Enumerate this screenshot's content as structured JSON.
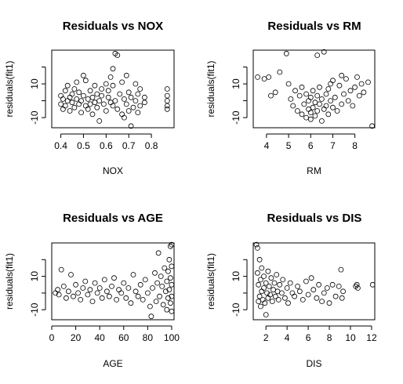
{
  "chart_data": [
    {
      "type": "scatter",
      "title": "Residuals vs NOX",
      "xlabel": "NOX",
      "ylabel": "residuals(fit1)",
      "xlim": [
        0.36,
        0.9
      ],
      "ylim": [
        -16,
        30
      ],
      "xticks": [
        0.4,
        0.5,
        0.6,
        0.7,
        0.8
      ],
      "xtick_labels": [
        "0.4",
        "0.5",
        "0.6",
        "0.7",
        "0.8"
      ],
      "yticks": [
        -10,
        0,
        10,
        20
      ],
      "ytick_labels": [
        "-10",
        "",
        "10",
        ""
      ],
      "grid": false,
      "points": [
        [
          0.4,
          -2
        ],
        [
          0.4,
          3
        ],
        [
          0.41,
          1
        ],
        [
          0.41,
          -5
        ],
        [
          0.42,
          6
        ],
        [
          0.42,
          -3
        ],
        [
          0.43,
          0
        ],
        [
          0.43,
          9
        ],
        [
          0.44,
          -6
        ],
        [
          0.44,
          2
        ],
        [
          0.45,
          4
        ],
        [
          0.45,
          -1
        ],
        [
          0.46,
          7
        ],
        [
          0.46,
          -4
        ],
        [
          0.47,
          1
        ],
        [
          0.47,
          11
        ],
        [
          0.48,
          -2
        ],
        [
          0.48,
          5
        ],
        [
          0.49,
          0
        ],
        [
          0.49,
          -7
        ],
        [
          0.5,
          3
        ],
        [
          0.5,
          15
        ],
        [
          0.51,
          -3
        ],
        [
          0.51,
          12
        ],
        [
          0.52,
          1
        ],
        [
          0.52,
          -5
        ],
        [
          0.53,
          6
        ],
        [
          0.53,
          -2
        ],
        [
          0.54,
          2
        ],
        [
          0.54,
          -8
        ],
        [
          0.55,
          9
        ],
        [
          0.55,
          -1
        ],
        [
          0.56,
          4
        ],
        [
          0.56,
          -4
        ],
        [
          0.57,
          0
        ],
        [
          0.57,
          -12
        ],
        [
          0.58,
          3
        ],
        [
          0.58,
          7
        ],
        [
          0.59,
          -2
        ],
        [
          0.6,
          10
        ],
        [
          0.6,
          -6
        ],
        [
          0.61,
          2
        ],
        [
          0.61,
          6
        ],
        [
          0.62,
          -1
        ],
        [
          0.62,
          14
        ],
        [
          0.63,
          19
        ],
        [
          0.63,
          -3
        ],
        [
          0.63,
          9
        ],
        [
          0.64,
          28
        ],
        [
          0.64,
          0
        ],
        [
          0.65,
          27
        ],
        [
          0.65,
          -5
        ],
        [
          0.66,
          4
        ],
        [
          0.67,
          -8
        ],
        [
          0.67,
          11
        ],
        [
          0.68,
          1
        ],
        [
          0.68,
          -10
        ],
        [
          0.69,
          15
        ],
        [
          0.69,
          -2
        ],
        [
          0.7,
          -6
        ],
        [
          0.7,
          5
        ],
        [
          0.71,
          -15
        ],
        [
          0.71,
          2
        ],
        [
          0.72,
          -4
        ],
        [
          0.73,
          10
        ],
        [
          0.73,
          0
        ],
        [
          0.74,
          -7
        ],
        [
          0.74,
          4
        ],
        [
          0.75,
          7
        ],
        [
          0.75,
          -3
        ],
        [
          0.77,
          2
        ],
        [
          0.77,
          -1
        ],
        [
          0.87,
          -5
        ],
        [
          0.87,
          0
        ],
        [
          0.87,
          3
        ],
        [
          0.87,
          7
        ],
        [
          0.87,
          -3
        ]
      ]
    },
    {
      "type": "scatter",
      "title": "Residuals vs RM",
      "xlabel": "RM",
      "ylabel": "residuals(fit1)",
      "xlim": [
        3.4,
        8.9
      ],
      "ylim": [
        -16,
        30
      ],
      "xticks": [
        4,
        5,
        6,
        7,
        8
      ],
      "xtick_labels": [
        "4",
        "5",
        "6",
        "7",
        "8"
      ],
      "yticks": [
        -10,
        0,
        10,
        20
      ],
      "ytick_labels": [
        "-10",
        "",
        "10",
        ""
      ],
      "grid": false,
      "points": [
        [
          3.6,
          14
        ],
        [
          3.9,
          13
        ],
        [
          4.1,
          14
        ],
        [
          4.2,
          3
        ],
        [
          4.4,
          5
        ],
        [
          4.6,
          17
        ],
        [
          4.9,
          28
        ],
        [
          5,
          10
        ],
        [
          5.1,
          1
        ],
        [
          5.2,
          -3
        ],
        [
          5.3,
          6
        ],
        [
          5.4,
          -6
        ],
        [
          5.5,
          3
        ],
        [
          5.6,
          -8
        ],
        [
          5.6,
          8
        ],
        [
          5.7,
          -2
        ],
        [
          5.8,
          -10
        ],
        [
          5.8,
          4
        ],
        [
          5.9,
          -5
        ],
        [
          5.9,
          0
        ],
        [
          6,
          -7
        ],
        [
          6,
          2
        ],
        [
          6,
          -11
        ],
        [
          6.1,
          -4
        ],
        [
          6.1,
          6
        ],
        [
          6.2,
          -1
        ],
        [
          6.2,
          -9
        ],
        [
          6.3,
          3
        ],
        [
          6.3,
          -6
        ],
        [
          6.3,
          27
        ],
        [
          6.4,
          -2
        ],
        [
          6.4,
          8
        ],
        [
          6.5,
          -12
        ],
        [
          6.5,
          1
        ],
        [
          6.6,
          29
        ],
        [
          6.6,
          -5
        ],
        [
          6.7,
          4
        ],
        [
          6.7,
          -3
        ],
        [
          6.8,
          7
        ],
        [
          6.8,
          -8
        ],
        [
          6.9,
          10
        ],
        [
          6.9,
          0
        ],
        [
          7,
          -4
        ],
        [
          7,
          12
        ],
        [
          7.1,
          2
        ],
        [
          7.2,
          -6
        ],
        [
          7.3,
          9
        ],
        [
          7.4,
          15
        ],
        [
          7.4,
          -2
        ],
        [
          7.5,
          4
        ],
        [
          7.6,
          13
        ],
        [
          7.7,
          0
        ],
        [
          7.8,
          6
        ],
        [
          7.9,
          -3
        ],
        [
          8,
          8
        ],
        [
          8.1,
          14
        ],
        [
          8.2,
          3
        ],
        [
          8.3,
          10
        ],
        [
          8.4,
          5
        ],
        [
          8.6,
          11
        ],
        [
          8.78,
          -15
        ]
      ]
    },
    {
      "type": "scatter",
      "title": "Residuals vs AGE",
      "xlabel": "AGE",
      "ylabel": "residuals(fit1)",
      "xlim": [
        0,
        102
      ],
      "ylim": [
        -16,
        30
      ],
      "xticks": [
        0,
        20,
        40,
        60,
        80,
        100
      ],
      "xtick_labels": [
        "0",
        "20",
        "40",
        "60",
        "80",
        "100"
      ],
      "yticks": [
        -10,
        0,
        10,
        20
      ],
      "ytick_labels": [
        "-10",
        "",
        "10",
        ""
      ],
      "grid": false,
      "points": [
        [
          3,
          0
        ],
        [
          5,
          2
        ],
        [
          6,
          -1
        ],
        [
          8,
          14
        ],
        [
          10,
          4
        ],
        [
          12,
          -3
        ],
        [
          14,
          1
        ],
        [
          16,
          11
        ],
        [
          18,
          -2
        ],
        [
          20,
          5
        ],
        [
          22,
          0
        ],
        [
          24,
          -4
        ],
        [
          26,
          3
        ],
        [
          28,
          7
        ],
        [
          30,
          -1
        ],
        [
          32,
          2
        ],
        [
          34,
          -5
        ],
        [
          36,
          6
        ],
        [
          38,
          0
        ],
        [
          40,
          3
        ],
        [
          42,
          -3
        ],
        [
          44,
          8
        ],
        [
          46,
          1
        ],
        [
          48,
          -2
        ],
        [
          50,
          4
        ],
        [
          52,
          9
        ],
        [
          54,
          -4
        ],
        [
          56,
          2
        ],
        [
          58,
          0
        ],
        [
          60,
          6
        ],
        [
          62,
          -3
        ],
        [
          64,
          3
        ],
        [
          66,
          -6
        ],
        [
          68,
          11
        ],
        [
          70,
          1
        ],
        [
          72,
          -2
        ],
        [
          74,
          5
        ],
        [
          76,
          -4
        ],
        [
          78,
          8
        ],
        [
          80,
          0
        ],
        [
          82,
          -8
        ],
        [
          83,
          -14
        ],
        [
          84,
          3
        ],
        [
          86,
          12
        ],
        [
          87,
          -5
        ],
        [
          88,
          6
        ],
        [
          89,
          24
        ],
        [
          90,
          -2
        ],
        [
          91,
          10
        ],
        [
          92,
          4
        ],
        [
          93,
          -7
        ],
        [
          94,
          15
        ],
        [
          95,
          1
        ],
        [
          96,
          -10
        ],
        [
          96,
          7
        ],
        [
          97,
          13
        ],
        [
          97,
          -3
        ],
        [
          98,
          2
        ],
        [
          98,
          20
        ],
        [
          99,
          -6
        ],
        [
          99,
          9
        ],
        [
          99,
          28
        ],
        [
          100,
          5
        ],
        [
          100,
          -2
        ],
        [
          100,
          29
        ],
        [
          100,
          -11
        ],
        [
          100,
          16
        ]
      ]
    },
    {
      "type": "scatter",
      "title": "Residuals vs DIS",
      "xlabel": "DIS",
      "ylabel": "residuals(fit1)",
      "xlim": [
        0.8,
        12.3
      ],
      "ylim": [
        -16,
        30
      ],
      "xticks": [
        2,
        4,
        6,
        8,
        10,
        12
      ],
      "xtick_labels": [
        "2",
        "4",
        "6",
        "8",
        "10",
        "12"
      ],
      "yticks": [
        -10,
        0,
        10,
        20
      ],
      "ytick_labels": [
        "-10",
        "",
        "10",
        ""
      ],
      "grid": false,
      "points": [
        [
          1.1,
          29
        ],
        [
          1.2,
          27
        ],
        [
          1.2,
          12
        ],
        [
          1.3,
          -5
        ],
        [
          1.3,
          5
        ],
        [
          1.4,
          20
        ],
        [
          1.4,
          -2
        ],
        [
          1.5,
          8
        ],
        [
          1.5,
          -8
        ],
        [
          1.6,
          15
        ],
        [
          1.6,
          1
        ],
        [
          1.7,
          -4
        ],
        [
          1.8,
          10
        ],
        [
          1.8,
          3
        ],
        [
          1.9,
          -6
        ],
        [
          2,
          6
        ],
        [
          2,
          -13
        ],
        [
          2.1,
          0
        ],
        [
          2.2,
          13
        ],
        [
          2.2,
          -3
        ],
        [
          2.3,
          4
        ],
        [
          2.4,
          -1
        ],
        [
          2.5,
          9
        ],
        [
          2.6,
          -5
        ],
        [
          2.7,
          2
        ],
        [
          2.8,
          6
        ],
        [
          2.9,
          -2
        ],
        [
          3,
          11
        ],
        [
          3.1,
          1
        ],
        [
          3.2,
          -4
        ],
        [
          3.3,
          5
        ],
        [
          3.5,
          0
        ],
        [
          3.6,
          8
        ],
        [
          3.8,
          -3
        ],
        [
          4,
          3
        ],
        [
          4.1,
          -6
        ],
        [
          4.3,
          6
        ],
        [
          4.5,
          0
        ],
        [
          4.7,
          -2
        ],
        [
          5,
          4
        ],
        [
          5.2,
          1
        ],
        [
          5.5,
          -4
        ],
        [
          5.8,
          7
        ],
        [
          6,
          -1
        ],
        [
          6.3,
          9
        ],
        [
          6.5,
          2
        ],
        [
          6.8,
          -3
        ],
        [
          7,
          5
        ],
        [
          7.3,
          -5
        ],
        [
          7.5,
          0
        ],
        [
          7.8,
          3
        ],
        [
          8,
          -6
        ],
        [
          8.3,
          5
        ],
        [
          8.6,
          -2
        ],
        [
          8.9,
          4
        ],
        [
          9.1,
          14
        ],
        [
          9.2,
          -3
        ],
        [
          9.3,
          1
        ],
        [
          10.5,
          4
        ],
        [
          10.6,
          5
        ],
        [
          10.7,
          3
        ],
        [
          12.1,
          5
        ]
      ]
    }
  ]
}
